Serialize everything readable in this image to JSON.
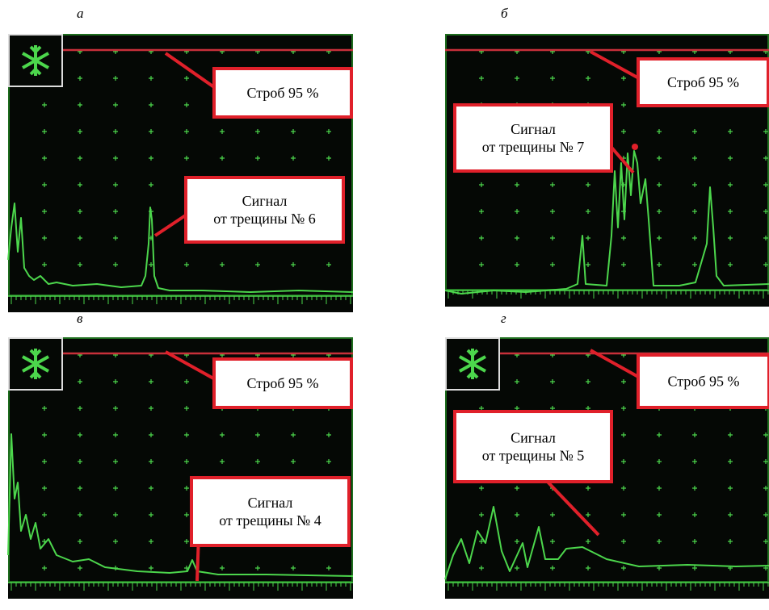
{
  "panels": [
    {
      "letter": "а",
      "gate_label": "Строб 95 %",
      "signal_label": [
        "Сигнал",
        "от трещины № 6"
      ]
    },
    {
      "letter": "б",
      "gate_label": "Строб 95 %",
      "signal_label": [
        "Сигнал",
        "от трещины № 7"
      ]
    },
    {
      "letter": "в",
      "gate_label": "Строб 95 %",
      "signal_label": [
        "Сигнал",
        "от трещины № 4"
      ]
    },
    {
      "letter": "г",
      "gate_label": "Строб 95 %",
      "signal_label": [
        "Сигнал",
        "от трещины № 5"
      ]
    }
  ]
}
